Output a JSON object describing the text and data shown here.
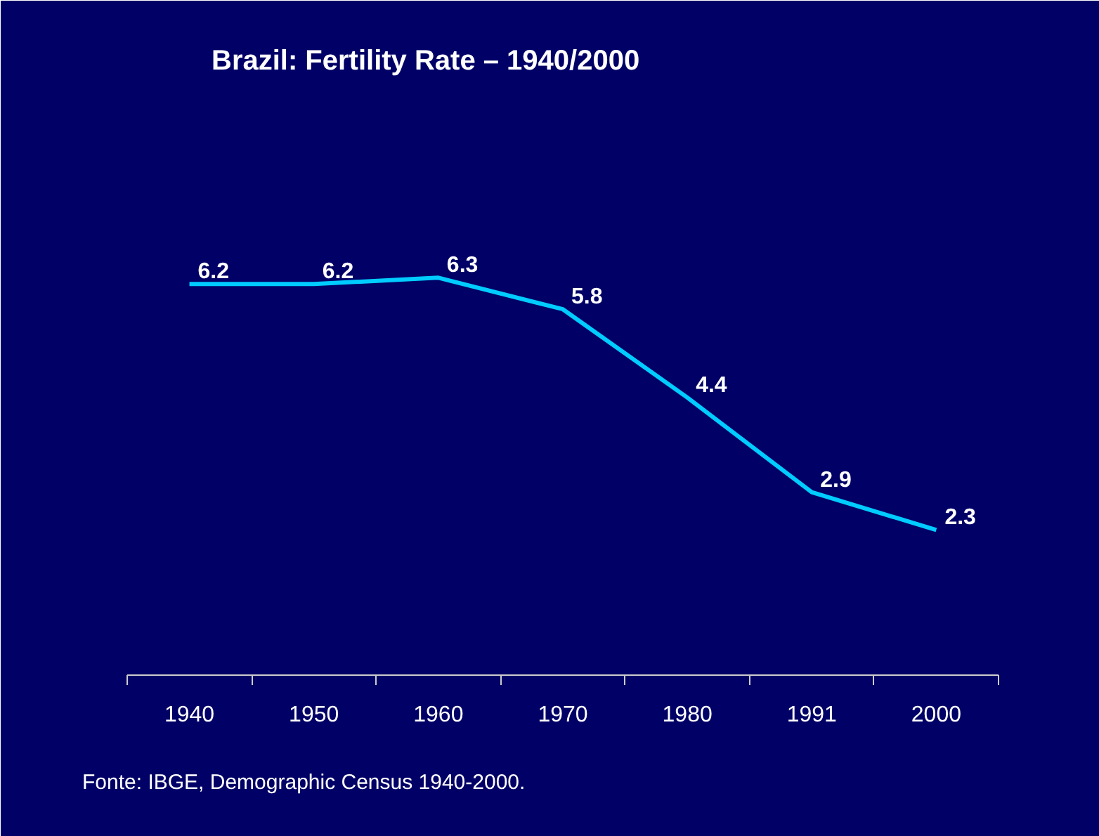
{
  "chart_data": {
    "type": "line",
    "title": "Brazil: Fertility Rate – 1940/2000",
    "categories": [
      "1940",
      "1950",
      "1960",
      "1970",
      "1980",
      "1991",
      "2000"
    ],
    "series": [
      {
        "color": "#00ccff",
        "values": [
          6.2,
          6.2,
          6.3,
          5.8,
          4.4,
          2.9,
          2.3
        ]
      }
    ],
    "data_labels": true,
    "grid": false,
    "marker": "none",
    "line_style": "solid",
    "annotations": [
      "Fonte: IBGE, Demographic Census 1940-2000."
    ]
  }
}
